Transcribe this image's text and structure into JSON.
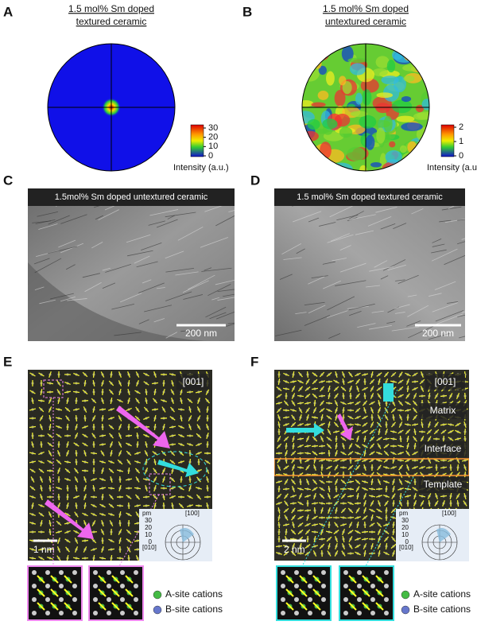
{
  "panels": [
    {
      "label": "A",
      "title": [
        "1.5 mol% Sm doped",
        "textured ceramic"
      ],
      "colorbar": {
        "ticks": [
          30,
          20,
          10,
          0
        ],
        "label": "Intensity (a.u.)"
      }
    },
    {
      "label": "B",
      "title": [
        "1.5 mol% Sm doped",
        "untextured ceramic"
      ],
      "colorbar": {
        "ticks": [
          2,
          1,
          0
        ],
        "label": "Intensity (a.u.)"
      }
    },
    {
      "label": "C",
      "caption": "1.5mol% Sm doped untextured ceramic",
      "scale_bar": "200 nm"
    },
    {
      "label": "D",
      "caption": "1.5 mol% Sm doped textured ceramic",
      "scale_bar": "200 nm"
    },
    {
      "label": "E",
      "zone_axis": "[001]",
      "scale_bar": "1 nm",
      "polar": {
        "unit": "pm",
        "ticks": [
          30,
          20,
          10,
          0
        ],
        "axes": [
          "[100]",
          "[010]"
        ]
      },
      "legend": [
        "A-site cations",
        "B-site cations"
      ]
    },
    {
      "label": "F",
      "zone_axis": "[001]",
      "regions": [
        "Matrix",
        "Interface",
        "Template"
      ],
      "scale_bar": "2 nm",
      "polar": {
        "unit": "pm",
        "ticks": [
          30,
          20,
          10,
          0
        ],
        "axes": [
          "[100]",
          "[010]"
        ]
      },
      "legend": [
        "A-site cations",
        "B-site cations"
      ]
    }
  ]
}
